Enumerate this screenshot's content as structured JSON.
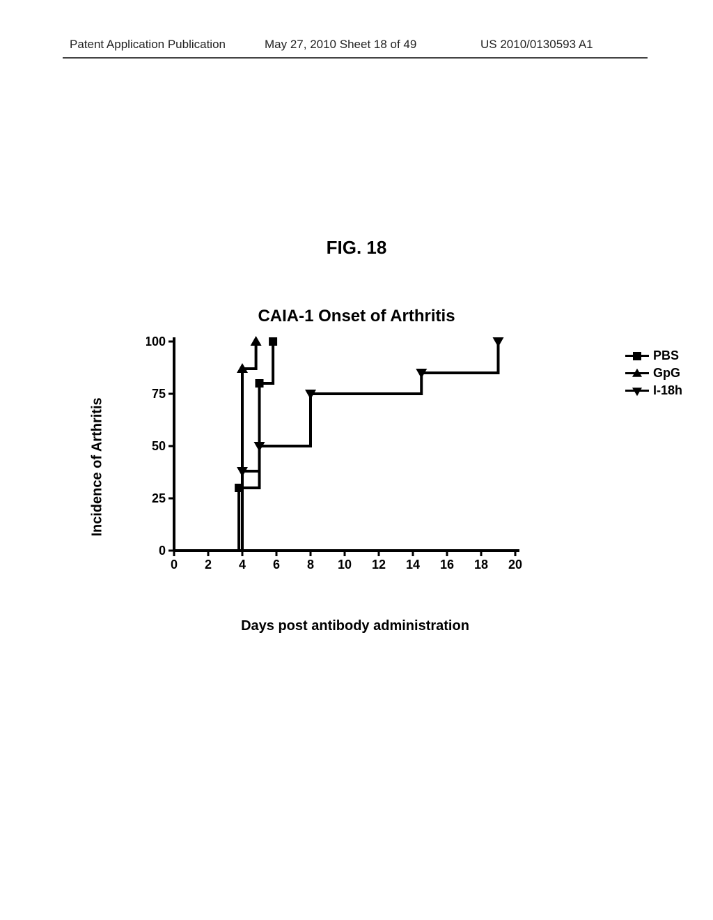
{
  "header": {
    "left": "Patent Application Publication",
    "center": "May 27, 2010  Sheet 18 of 49",
    "right": "US 2010/0130593 A1"
  },
  "figure": {
    "label": "FIG. 18",
    "chart": {
      "type": "step-line",
      "title": "CAIA-1 Onset of Arthritis",
      "x_label": "Days post antibody administration",
      "y_label": "Incidence of Arthritis",
      "xlim": [
        0,
        20
      ],
      "ylim": [
        0,
        100
      ],
      "x_ticks": [
        0,
        2,
        4,
        6,
        8,
        10,
        12,
        14,
        16,
        18,
        20
      ],
      "y_ticks": [
        0,
        25,
        50,
        75,
        100
      ],
      "background_color": "#ffffff",
      "axis_color": "#000000",
      "axis_linewidth": 4,
      "series_linewidth": 4,
      "tick_fontsize": 18,
      "tick_fontweight": "bold",
      "label_fontsize": 20,
      "title_fontsize": 24,
      "series": [
        {
          "name": "PBS",
          "marker": "square",
          "color": "#000000",
          "points": [
            {
              "x": 0,
              "y": 0
            },
            {
              "x": 3.8,
              "y": 0
            },
            {
              "x": 3.8,
              "y": 30
            },
            {
              "x": 5.0,
              "y": 30
            },
            {
              "x": 5.0,
              "y": 80
            },
            {
              "x": 5.8,
              "y": 80
            },
            {
              "x": 5.8,
              "y": 100
            }
          ],
          "markers_at": [
            {
              "x": 3.8,
              "y": 30
            },
            {
              "x": 5.0,
              "y": 80
            },
            {
              "x": 5.8,
              "y": 100
            }
          ]
        },
        {
          "name": "GpG",
          "marker": "triangle-up",
          "color": "#000000",
          "points": [
            {
              "x": 0,
              "y": 0
            },
            {
              "x": 4.0,
              "y": 0
            },
            {
              "x": 4.0,
              "y": 87
            },
            {
              "x": 4.8,
              "y": 87
            },
            {
              "x": 4.8,
              "y": 100
            }
          ],
          "markers_at": [
            {
              "x": 4.0,
              "y": 87
            },
            {
              "x": 4.8,
              "y": 100
            }
          ]
        },
        {
          "name": "I-18h",
          "marker": "triangle-down",
          "color": "#000000",
          "points": [
            {
              "x": 0,
              "y": 0
            },
            {
              "x": 4.0,
              "y": 0
            },
            {
              "x": 4.0,
              "y": 38
            },
            {
              "x": 5.0,
              "y": 38
            },
            {
              "x": 5.0,
              "y": 50
            },
            {
              "x": 8.0,
              "y": 50
            },
            {
              "x": 8.0,
              "y": 75
            },
            {
              "x": 14.5,
              "y": 75
            },
            {
              "x": 14.5,
              "y": 85
            },
            {
              "x": 19,
              "y": 85
            },
            {
              "x": 19,
              "y": 100
            }
          ],
          "markers_at": [
            {
              "x": 4.0,
              "y": 38
            },
            {
              "x": 5.0,
              "y": 50
            },
            {
              "x": 8.0,
              "y": 75
            },
            {
              "x": 14.5,
              "y": 85
            },
            {
              "x": 19,
              "y": 100
            }
          ]
        }
      ],
      "legend": {
        "position": "right",
        "items": [
          {
            "label": "PBS",
            "marker": "square"
          },
          {
            "label": "GpG",
            "marker": "triangle-up"
          },
          {
            "label": "I-18h",
            "marker": "triangle-down"
          }
        ]
      }
    }
  }
}
